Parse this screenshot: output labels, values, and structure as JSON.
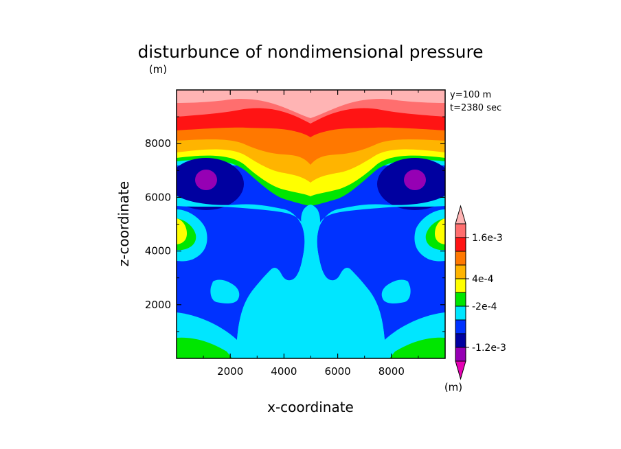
{
  "chart_data": {
    "type": "heatmap",
    "title": "disturbunce of nondimensional pressure",
    "units_label": "(m)",
    "info_lines": [
      "y=100 m",
      "t=2380 sec"
    ],
    "xlabel": "x-coordinate",
    "ylabel": "z-coordinate",
    "xlim": [
      0,
      10000
    ],
    "ylim": [
      0,
      10000
    ],
    "xticks": [
      2000,
      4000,
      6000,
      8000
    ],
    "yticks": [
      2000,
      4000,
      6000,
      8000
    ],
    "colorbar": {
      "unit": "(m)",
      "levels": [
        -0.0016,
        -0.0012,
        -0.0008,
        -0.0004,
        -0.0002,
        0,
        0.0004,
        0.0008,
        0.0012,
        0.0016
      ],
      "colors": [
        "#e600b4",
        "#9600b4",
        "#0000a0",
        "#0032ff",
        "#00e6ff",
        "#00e600",
        "#ffff00",
        "#ffb400",
        "#ff7800",
        "#ff1414",
        "#ff6e6e",
        "#ffb4b4"
      ],
      "labels": [
        {
          "value": 0.0016,
          "text": "1.6e-3"
        },
        {
          "value": 0.0004,
          "text": "4e-4"
        },
        {
          "value": -0.0002,
          "text": "-2e-4"
        },
        {
          "value": -0.0012,
          "text": "-1.2e-3"
        }
      ]
    },
    "regions": [
      {
        "name": "surface-warm-left",
        "level_index": 5,
        "cx": 1000,
        "cz": 300
      },
      {
        "name": "surface-warm-right",
        "level_index": 5,
        "cx": 9000,
        "cz": 300
      },
      {
        "name": "central-plume",
        "level_index": 4,
        "cx": 5000,
        "cz": 2500
      },
      {
        "name": "vortex-core-left",
        "level_index": 1,
        "cx": 1200,
        "cz": 6600
      },
      {
        "name": "vortex-core-right",
        "level_index": 1,
        "cx": 8800,
        "cz": 6600
      },
      {
        "name": "side-high-left",
        "level_index": 6,
        "cx": 200,
        "cz": 4900
      },
      {
        "name": "side-high-right",
        "level_index": 6,
        "cx": 9800,
        "cz": 4900
      },
      {
        "name": "upper-band",
        "level_index": 11,
        "cx": 5000,
        "cz": 9400
      }
    ]
  },
  "labels": {
    "title": "disturbunce of nondimensional pressure",
    "units": "(m)",
    "info_y": "y=100 m",
    "info_t": "t=2380 sec",
    "xlabel": "x-coordinate",
    "ylabel": "z-coordinate",
    "cbar_unit": "(m)"
  }
}
